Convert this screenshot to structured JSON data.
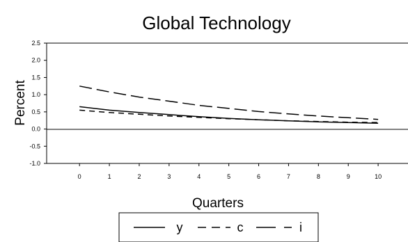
{
  "chart_data": {
    "type": "line",
    "title": "Global Technology",
    "xlabel": "Quarters",
    "ylabel": "Percent",
    "x": [
      0,
      1,
      2,
      3,
      4,
      5,
      6,
      7,
      8,
      9,
      10
    ],
    "xlim": [
      -1.1,
      11
    ],
    "ylim": [
      -1.0,
      2.5
    ],
    "yticks": [
      "2.5",
      "2.0",
      "1.5",
      "1.0",
      "0.5",
      "0.0",
      "-0.5",
      "-1.0"
    ],
    "xticks": [
      "0",
      "1",
      "2",
      "3",
      "4",
      "5",
      "6",
      "7",
      "8",
      "9",
      "10"
    ],
    "grid": false,
    "legend_position": "bottom",
    "series": [
      {
        "name": "y",
        "style": "solid",
        "values": [
          0.65,
          0.55,
          0.48,
          0.42,
          0.36,
          0.31,
          0.27,
          0.24,
          0.21,
          0.19,
          0.17
        ]
      },
      {
        "name": "c",
        "style": "short-dash",
        "values": [
          0.55,
          0.48,
          0.43,
          0.38,
          0.34,
          0.3,
          0.27,
          0.24,
          0.22,
          0.2,
          0.19
        ]
      },
      {
        "name": "i",
        "style": "long-dash",
        "values": [
          1.25,
          1.08,
          0.93,
          0.81,
          0.69,
          0.6,
          0.51,
          0.44,
          0.38,
          0.33,
          0.28
        ]
      }
    ]
  }
}
